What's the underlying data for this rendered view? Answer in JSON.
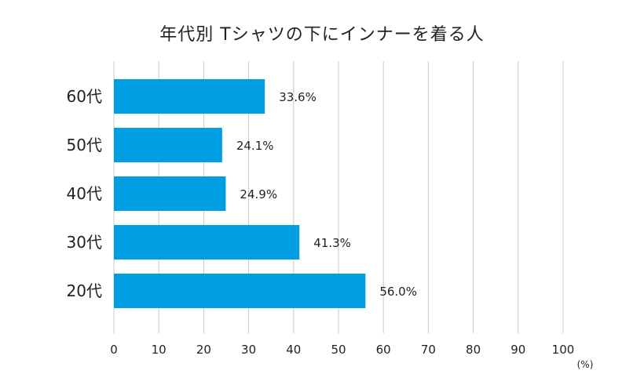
{
  "chart_data": {
    "type": "bar",
    "orientation": "horizontal",
    "title": "年代別 Tシャツの下にインナーを着る人",
    "categories": [
      "60代",
      "50代",
      "40代",
      "30代",
      "20代"
    ],
    "values": [
      33.6,
      24.1,
      24.9,
      41.3,
      56.0
    ],
    "value_labels": [
      "33.6%",
      "24.1%",
      "24.9%",
      "41.3%",
      "56.0%"
    ],
    "xlim": [
      0,
      100
    ],
    "x_ticks": [
      "0",
      "10",
      "20",
      "30",
      "40",
      "50",
      "60",
      "70",
      "80",
      "90",
      "100"
    ],
    "x_unit": "(%)",
    "grid": "vertical",
    "bar_color": "#009fe3",
    "grid_color": "#c8c8c8"
  }
}
